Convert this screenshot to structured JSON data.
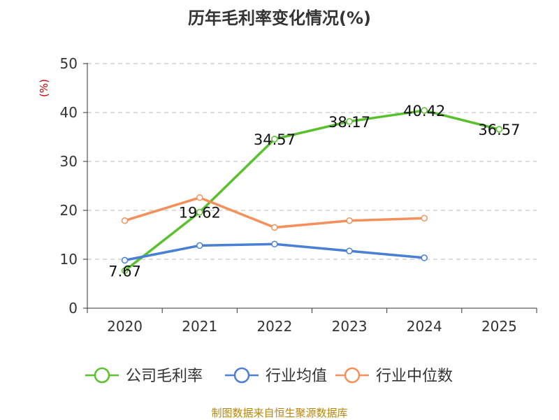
{
  "chart_data": {
    "type": "line",
    "title": "历年毛利率变化情况(%)",
    "ylabel": "(%)",
    "xlabel": "",
    "categories": [
      "2020",
      "2021",
      "2022",
      "2023",
      "2024",
      "2025"
    ],
    "ylim": [
      0,
      50
    ],
    "yticks": [
      "0",
      "10",
      "20",
      "30",
      "40",
      "50"
    ],
    "grid": true,
    "legend_position": "bottom",
    "series": [
      {
        "name": "公司毛利率",
        "color": "#5ac12e",
        "labeled": true,
        "values": [
          7.67,
          19.62,
          34.57,
          38.17,
          40.42,
          36.57
        ],
        "labels": [
          "7.67",
          "19.62",
          "34.57",
          "38.17",
          "40.42",
          "36.57"
        ]
      },
      {
        "name": "行业均值",
        "color": "#4a7fd6",
        "labeled": false,
        "values": [
          9.8,
          12.8,
          13.1,
          11.7,
          10.3,
          null
        ]
      },
      {
        "name": "行业中位数",
        "color": "#f5905a",
        "labeled": false,
        "values": [
          17.9,
          22.6,
          16.5,
          17.9,
          18.4,
          null
        ]
      }
    ],
    "source": "制图数据来自恒生聚源数据库"
  }
}
